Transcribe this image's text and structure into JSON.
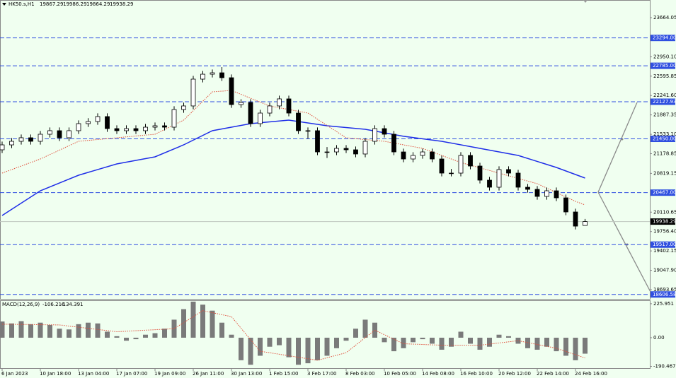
{
  "chart_data": [
    {
      "type": "candlestick",
      "title": "HK50.s,H1",
      "categories": [
        "6 Jan 2023",
        null,
        null,
        null,
        "10 Jan 18:00",
        null,
        null,
        null,
        "13 Jan 04:00",
        null,
        null,
        null,
        "17 Jan 07:00",
        null,
        null,
        null,
        "19 Jan 09:00",
        null,
        null,
        null,
        "26 Jan 11:00",
        null,
        null,
        null,
        "30 Jan 13:00",
        null,
        null,
        null,
        "1 Feb 15:00",
        null,
        null,
        null,
        "3 Feb 17:00",
        null,
        null,
        null,
        "8 Feb 03:00",
        null,
        null,
        null,
        "10 Feb 05:00",
        null,
        null,
        null,
        "14 Feb 08:00",
        null,
        null,
        null,
        "16 Feb 10:00",
        null,
        null,
        null,
        "20 Feb 12:00",
        null,
        null,
        null,
        "22 Feb 14:00",
        null,
        null,
        null,
        "24 Feb 16:00",
        null
      ],
      "open": [
        21250,
        21340,
        21405,
        21470,
        21405,
        21534,
        21599,
        21470,
        21599,
        21728,
        21767,
        21857,
        21637,
        21599,
        21637,
        21599,
        21663,
        21689,
        21663,
        21986,
        22051,
        22541,
        22631,
        22657,
        22567,
        22076,
        22115,
        21728,
        21921,
        22051,
        22180,
        21921,
        21599,
        21599,
        21211,
        21211,
        21276,
        21250,
        21173,
        21405,
        21637,
        21534,
        21211,
        21082,
        21147,
        21211,
        21082,
        20824,
        20824,
        21147,
        20953,
        20695,
        20566,
        20889,
        20824,
        20566,
        20527,
        20398,
        20501,
        20372,
        20114,
        19867.29
      ],
      "high": [
        21400,
        21465,
        21530,
        21530,
        21594,
        21659,
        21659,
        21659,
        21788,
        21827,
        21917,
        21917,
        21697,
        21697,
        21697,
        21723,
        21749,
        21749,
        22046,
        22111,
        22601,
        22691,
        22717,
        22760,
        22627,
        22175,
        22175,
        21981,
        22111,
        22240,
        22240,
        21981,
        21659,
        21659,
        21300,
        21336,
        21336,
        21310,
        21465,
        21697,
        21697,
        21594,
        21271,
        21207,
        21271,
        21271,
        21142,
        20900,
        21207,
        21207,
        21013,
        20755,
        20949,
        20949,
        20884,
        20626,
        20587,
        20561,
        20561,
        20432,
        20174,
        19986.29
      ],
      "low": [
        21190,
        21280,
        21345,
        21345,
        21345,
        21474,
        21410,
        21410,
        21539,
        21668,
        21707,
        21577,
        21539,
        21539,
        21539,
        21539,
        21603,
        21603,
        21603,
        21926,
        21991,
        22481,
        22571,
        22507,
        22016,
        22016,
        21668,
        21668,
        21861,
        21991,
        21861,
        21539,
        21450,
        21151,
        21100,
        21151,
        21190,
        21113,
        21113,
        21345,
        21474,
        21151,
        21022,
        21022,
        21087,
        21022,
        20764,
        20764,
        20764,
        20893,
        20635,
        20506,
        20506,
        20764,
        20506,
        20467,
        20338,
        20338,
        20312,
        20054,
        19795,
        19864.29
      ],
      "close": [
        21340,
        21405,
        21470,
        21405,
        21534,
        21599,
        21470,
        21599,
        21728,
        21767,
        21857,
        21637,
        21599,
        21637,
        21599,
        21663,
        21689,
        21663,
        21986,
        22051,
        22541,
        22631,
        22657,
        22567,
        22076,
        22115,
        21728,
        21921,
        22051,
        22180,
        21921,
        21599,
        21599,
        21211,
        21211,
        21276,
        21250,
        21173,
        21405,
        21637,
        21534,
        21211,
        21082,
        21147,
        21211,
        21082,
        20824,
        20824,
        21147,
        20953,
        20695,
        20566,
        20889,
        20824,
        20566,
        20527,
        20398,
        20501,
        20372,
        20114,
        19855,
        19938.29
      ],
      "ma": [
        {
          "color": "#1f2ee8",
          "style": "solid",
          "x": [
            0,
            4,
            8,
            12,
            16,
            19,
            22,
            26,
            30,
            34,
            38,
            42,
            46,
            50,
            54,
            58,
            61
          ],
          "values": [
            20049,
            20501,
            20785,
            20992,
            21121,
            21340,
            21599,
            21728,
            21792,
            21689,
            21625,
            21496,
            21405,
            21276,
            21147,
            20927,
            20734
          ]
        },
        {
          "color": "#e0503c",
          "style": "dotted",
          "x": [
            0,
            4,
            8,
            12,
            16,
            19,
            22,
            24,
            28,
            32,
            36,
            40,
            44,
            48,
            52,
            56,
            60,
            61
          ],
          "values": [
            20824,
            21082,
            21405,
            21470,
            21534,
            21792,
            22309,
            22335,
            22051,
            21921,
            21470,
            21405,
            21276,
            21018,
            20824,
            20630,
            20308,
            20243
          ]
        }
      ],
      "levels": [
        {
          "value": 23294,
          "label": "23294.00"
        },
        {
          "value": 22785,
          "label": "22785.00"
        },
        {
          "value": 22127.93,
          "label": "22127.93"
        },
        {
          "value": 21450,
          "label": "21450.00"
        },
        {
          "value": 20467,
          "label": "20467.00"
        },
        {
          "value": 19517,
          "label": "19517.00"
        },
        {
          "value": 18606.58,
          "label": "18606.58"
        }
      ],
      "level_color": "#2f4fe0",
      "ylim": [
        18526,
        23987
      ],
      "yticks": [
        23664.05,
        {
          "value": 22950.1,
          "label": "22950.10"
        },
        22595.85,
        {
          "value": 22241.6,
          "label": "22241.60"
        },
        21887.35,
        {
          "value": 21533.1,
          "label": "21533.10"
        },
        21178.85,
        20819.15,
        20110.65,
        {
          "value": 19756.4,
          "label": "19756.40"
        },
        19402.15,
        {
          "value": 19047.9,
          "label": "19047.90"
        },
        18693.65
      ]
    },
    {
      "type": "macd",
      "title": "MACD(12,26,9)",
      "histogram": {
        "color": "#7a7a7a",
        "values": [
          108,
          95,
          110,
          90,
          100,
          85,
          60,
          55,
          90,
          100,
          95,
          40,
          10,
          -20,
          -10,
          20,
          30,
          60,
          120,
          190,
          240,
          220,
          180,
          100,
          20,
          -150,
          -180,
          -120,
          -60,
          -50,
          -130,
          -180,
          -170,
          -150,
          -120,
          -70,
          -20,
          60,
          120,
          100,
          -30,
          -90,
          -70,
          -30,
          -10,
          -40,
          -80,
          -60,
          40,
          -40,
          -80,
          -60,
          20,
          10,
          -40,
          -70,
          -80,
          -60,
          -90,
          -120,
          -150,
          -106.216
        ]
      },
      "signal": {
        "color": "#e0503c",
        "x": [
          0,
          6,
          12,
          18,
          21,
          24,
          27,
          30,
          33,
          36,
          39,
          42,
          46,
          50,
          54,
          58,
          61
        ],
        "values": [
          90,
          85,
          40,
          60,
          180,
          140,
          -90,
          -120,
          -150,
          -100,
          50,
          -40,
          -50,
          -50,
          -20,
          -70,
          -134.391
        ]
      },
      "ylim": [
        -207,
        249
      ],
      "yticks": [
        225.951,
        {
          "value": 0,
          "label": "0.00"
        },
        -190.467
      ]
    }
  ]
}
